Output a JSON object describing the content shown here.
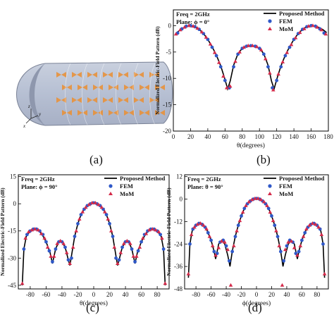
{
  "panel_a": {
    "label": "(a)",
    "axis_x": "x",
    "axis_y": "y",
    "axis_z": "z"
  },
  "colors": {
    "line": "#000000",
    "fem": "#2f58c8",
    "mom": "#d42a4a",
    "tile": "#e8913a"
  },
  "chart_data": [
    {
      "id": "b",
      "type": "line",
      "panel_label": "(b)",
      "info": [
        "Freq = 2GHz",
        "Plane: ϕ = 0°"
      ],
      "xlabel": "θ(degrees)",
      "ylabel": "Normalized Electric-Field Pattern (dB)",
      "xlim": [
        0,
        180
      ],
      "ylim": [
        -20,
        3
      ],
      "xticks": [
        0,
        20,
        40,
        60,
        80,
        100,
        120,
        140,
        160,
        180
      ],
      "yticks": [
        0,
        -5,
        -10,
        -15,
        -20
      ],
      "ytick_labels": [
        "0",
        "-5",
        "-10",
        "-15",
        "-20"
      ],
      "legend": "top-right",
      "series": [
        {
          "name": "Proposed Method",
          "kind": "line",
          "x": [
            4,
            8,
            12,
            16,
            20,
            25,
            30,
            35,
            40,
            45,
            50,
            55,
            60,
            63,
            66,
            70,
            75,
            80,
            85,
            90,
            95,
            100,
            105,
            110,
            114,
            117,
            120,
            125,
            130,
            135,
            140,
            145,
            150,
            155,
            160,
            165,
            170,
            174,
            178
          ],
          "y": [
            -1.3,
            -0.8,
            -0.4,
            -0.1,
            0,
            -0.2,
            -0.7,
            -1.5,
            -2.6,
            -4,
            -5.6,
            -7.6,
            -10.2,
            -12,
            -10.5,
            -7.5,
            -5.3,
            -4.3,
            -3.9,
            -3.8,
            -3.9,
            -4.3,
            -5.3,
            -7.5,
            -10.5,
            -12,
            -10.2,
            -7.6,
            -5.6,
            -4,
            -2.6,
            -1.5,
            -0.7,
            -0.2,
            0,
            -0.1,
            -0.4,
            -0.8,
            -1.3
          ]
        },
        {
          "name": "FEM",
          "kind": "marker",
          "shape": "circle",
          "x": [
            5,
            10,
            15,
            20,
            25,
            30,
            35,
            40,
            45,
            50,
            55,
            60,
            65,
            70,
            75,
            80,
            85,
            90,
            95,
            100,
            105,
            110,
            115,
            120,
            125,
            130,
            135,
            140,
            145,
            150,
            155,
            160,
            165,
            170,
            175
          ],
          "y": [
            -1.4,
            -0.6,
            -0.1,
            0,
            -0.2,
            -0.7,
            -1.5,
            -2.6,
            -4.1,
            -5.7,
            -7.8,
            -10.4,
            -11.8,
            -7.8,
            -5.4,
            -4.3,
            -3.9,
            -3.8,
            -3.9,
            -4.3,
            -5.4,
            -7.8,
            -11.8,
            -10.4,
            -7.8,
            -5.7,
            -4.1,
            -2.6,
            -1.5,
            -0.7,
            -0.2,
            0,
            -0.1,
            -0.6,
            -1.4
          ]
        },
        {
          "name": "MoM",
          "kind": "marker",
          "shape": "triangle",
          "x": [
            3,
            8,
            13,
            18,
            23,
            28,
            33,
            38,
            43,
            48,
            53,
            58,
            62,
            66,
            72,
            77,
            82,
            87,
            92,
            97,
            102,
            107,
            112,
            116,
            122,
            127,
            132,
            137,
            142,
            147,
            152,
            157,
            162,
            167,
            172,
            177
          ],
          "y": [
            -1.6,
            -0.8,
            -0.3,
            0,
            -0.1,
            -0.5,
            -1.2,
            -2.2,
            -3.5,
            -5.1,
            -7,
            -9.6,
            -11.8,
            -11.5,
            -6.8,
            -5,
            -4.1,
            -3.8,
            -3.8,
            -4,
            -4.6,
            -6.3,
            -9,
            -12.2,
            -9.2,
            -6.9,
            -5.1,
            -3.6,
            -2.3,
            -1.3,
            -0.6,
            -0.1,
            0,
            -0.3,
            -0.8,
            -1.6
          ]
        }
      ]
    },
    {
      "id": "c",
      "type": "line",
      "panel_label": "(c)",
      "info": [
        "Freq = 2GHz",
        "Plane:  ϕ = 90°"
      ],
      "xlabel": "θ(degrees)",
      "ylabel": "Normalized Electric-Field Pattern (dB)",
      "xlim": [
        -95,
        95
      ],
      "ylim": [
        -47,
        16
      ],
      "xticks": [
        -80,
        -60,
        -40,
        -20,
        0,
        20,
        40,
        60,
        80
      ],
      "yticks": [
        15,
        0,
        -15,
        -30,
        -45
      ],
      "ytick_labels": [
        "15",
        "0",
        "-15",
        "-30",
        "-45"
      ],
      "legend": "top-right",
      "series": [
        {
          "name": "Proposed Method",
          "kind": "line",
          "x": [
            -90,
            -88,
            -85,
            -80,
            -75,
            -70,
            -65,
            -60,
            -55,
            -52,
            -48,
            -44,
            -40,
            -36,
            -32,
            -30,
            -27,
            -24,
            -20,
            -16,
            -12,
            -8,
            -4,
            0,
            4,
            8,
            12,
            16,
            20,
            24,
            27,
            30,
            32,
            36,
            40,
            44,
            48,
            52,
            55,
            60,
            65,
            70,
            75,
            80,
            85,
            88,
            90
          ],
          "y": [
            -45,
            -25,
            -18,
            -15,
            -14,
            -14.5,
            -17,
            -21,
            -27,
            -33,
            -25,
            -21,
            -21,
            -24,
            -31,
            -34,
            -26,
            -18,
            -11,
            -6,
            -3,
            -1,
            0,
            0.5,
            0,
            -1,
            -3,
            -6,
            -11,
            -18,
            -26,
            -34,
            -31,
            -24,
            -21,
            -21,
            -25,
            -33,
            -27,
            -21,
            -17,
            -14.5,
            -14,
            -15,
            -18,
            -25,
            -45
          ]
        },
        {
          "name": "FEM",
          "kind": "marker",
          "shape": "circle",
          "x": [
            -88,
            -84,
            -80,
            -76,
            -72,
            -68,
            -64,
            -60,
            -56,
            -52,
            -48,
            -44,
            -40,
            -36,
            -32,
            -28,
            -24,
            -20,
            -16,
            -12,
            -8,
            -4,
            0,
            4,
            8,
            12,
            16,
            20,
            24,
            28,
            32,
            36,
            40,
            44,
            48,
            52,
            56,
            60,
            64,
            68,
            72,
            76,
            80,
            84,
            88
          ],
          "y": [
            -25,
            -17,
            -15,
            -14,
            -14,
            -15,
            -17,
            -21,
            -26,
            -32,
            -25,
            -21,
            -21,
            -24,
            -31,
            -30,
            -18,
            -11,
            -6,
            -3,
            -1,
            0,
            0.5,
            0,
            -1,
            -3,
            -6,
            -11,
            -18,
            -30,
            -31,
            -24,
            -21,
            -21,
            -25,
            -32,
            -26,
            -21,
            -17,
            -15,
            -14,
            -14,
            -15,
            -17,
            -25
          ]
        },
        {
          "name": "MoM",
          "kind": "marker",
          "shape": "triangle",
          "x": [
            -90,
            -86,
            -82,
            -78,
            -74,
            -70,
            -66,
            -62,
            -58,
            -54,
            -50,
            -46,
            -42,
            -38,
            -34,
            -30,
            -26,
            -22,
            -18,
            -14,
            -10,
            -6,
            -2,
            2,
            6,
            10,
            14,
            18,
            22,
            26,
            30,
            34,
            38,
            42,
            46,
            50,
            54,
            58,
            62,
            66,
            70,
            74,
            78,
            82,
            86,
            90
          ],
          "y": [
            -44,
            -19,
            -15.5,
            -14.5,
            -14,
            -14.5,
            -16.5,
            -19,
            -24,
            -29,
            -29,
            -22,
            -20.5,
            -22,
            -27,
            -33,
            -24,
            -15,
            -8.5,
            -4.5,
            -2,
            -0.5,
            0.5,
            0.5,
            -0.5,
            -2,
            -4.5,
            -8.5,
            -15,
            -24,
            -33,
            -27,
            -22,
            -20.5,
            -22,
            -29,
            -29,
            -24,
            -19,
            -16.5,
            -14.5,
            -14,
            -14.5,
            -15.5,
            -19,
            -44
          ]
        }
      ]
    },
    {
      "id": "d",
      "type": "line",
      "panel_label": "(d)",
      "info": [
        "Freq = 2GHz",
        "Plane:  θ = 90°"
      ],
      "xlabel": "ϕ(degrees)",
      "ylabel": "Normalized Electric-Field Pattern (dB)",
      "xlim": [
        -95,
        95
      ],
      "ylim": [
        -48,
        13
      ],
      "xticks": [
        -80,
        -60,
        -40,
        -20,
        0,
        20,
        40,
        60,
        80
      ],
      "yticks": [
        12,
        0,
        -12,
        -24,
        -36,
        -48
      ],
      "ytick_labels": [
        "12",
        "0",
        "-12",
        "-24",
        "-36",
        "-48"
      ],
      "legend": "top-right",
      "series": [
        {
          "name": "Proposed Method",
          "kind": "line",
          "x": [
            -90,
            -88,
            -85,
            -80,
            -75,
            -70,
            -65,
            -60,
            -56,
            -54,
            -50,
            -46,
            -42,
            -38,
            -35,
            -32,
            -28,
            -24,
            -20,
            -16,
            -12,
            -8,
            -4,
            0,
            4,
            8,
            12,
            16,
            20,
            24,
            28,
            32,
            35,
            38,
            42,
            46,
            50,
            54,
            56,
            60,
            65,
            70,
            75,
            80,
            85,
            88,
            90
          ],
          "y": [
            -42,
            -24,
            -17,
            -14,
            -13,
            -14,
            -17,
            -22,
            -28,
            -32,
            -24,
            -22,
            -24,
            -30,
            -36,
            -28,
            -20,
            -14,
            -9,
            -5,
            -2.5,
            -1,
            0,
            0.3,
            0,
            -1,
            -2.5,
            -5,
            -9,
            -14,
            -20,
            -28,
            -36,
            -30,
            -24,
            -22,
            -24,
            -32,
            -28,
            -22,
            -17,
            -14,
            -13,
            -14,
            -17,
            -24,
            -42
          ]
        },
        {
          "name": "FEM",
          "kind": "marker",
          "shape": "circle",
          "x": [
            -88,
            -84,
            -80,
            -76,
            -72,
            -68,
            -64,
            -60,
            -56,
            -52,
            -48,
            -44,
            -40,
            -36,
            -32,
            -28,
            -24,
            -20,
            -16,
            -12,
            -8,
            -4,
            0,
            4,
            8,
            12,
            16,
            20,
            24,
            28,
            32,
            36,
            40,
            44,
            48,
            52,
            56,
            60,
            64,
            68,
            72,
            76,
            80,
            84,
            88
          ],
          "y": [
            -24,
            -16,
            -14,
            -13,
            -13.5,
            -15,
            -18,
            -22,
            -28,
            -29,
            -23,
            -22,
            -25,
            -33,
            -28,
            -20,
            -14,
            -9,
            -5,
            -2.5,
            -1,
            0,
            0.3,
            0,
            -1,
            -2.5,
            -5,
            -9,
            -14,
            -20,
            -28,
            -33,
            -25,
            -22,
            -23,
            -29,
            -28,
            -22,
            -18,
            -15,
            -13.5,
            -13,
            -14,
            -16,
            -24
          ]
        },
        {
          "name": "MoM",
          "kind": "marker",
          "shape": "triangle",
          "x": [
            -90,
            -86,
            -82,
            -78,
            -74,
            -70,
            -66,
            -62,
            -58,
            -54,
            -50,
            -46,
            -42,
            -38,
            -34,
            -30,
            -26,
            -22,
            -18,
            -14,
            -10,
            -6,
            -2,
            2,
            6,
            10,
            14,
            18,
            22,
            26,
            30,
            34,
            38,
            42,
            46,
            50,
            54,
            58,
            62,
            66,
            70,
            74,
            78,
            82,
            86,
            90
          ],
          "y": [
            -40,
            -19,
            -15,
            -13.5,
            -13,
            -14,
            -16,
            -20,
            -25,
            -30,
            -26,
            -22.5,
            -23,
            -27,
            -46,
            -25,
            -17,
            -11.5,
            -7,
            -3.5,
            -1.5,
            -0.3,
            0.3,
            0.3,
            -0.3,
            -1.5,
            -3.5,
            -7,
            -11.5,
            -17,
            -25,
            -46,
            -27,
            -23,
            -22.5,
            -26,
            -30,
            -25,
            -20,
            -16,
            -14,
            -13,
            -13.5,
            -15,
            -19,
            -40
          ]
        }
      ]
    }
  ]
}
